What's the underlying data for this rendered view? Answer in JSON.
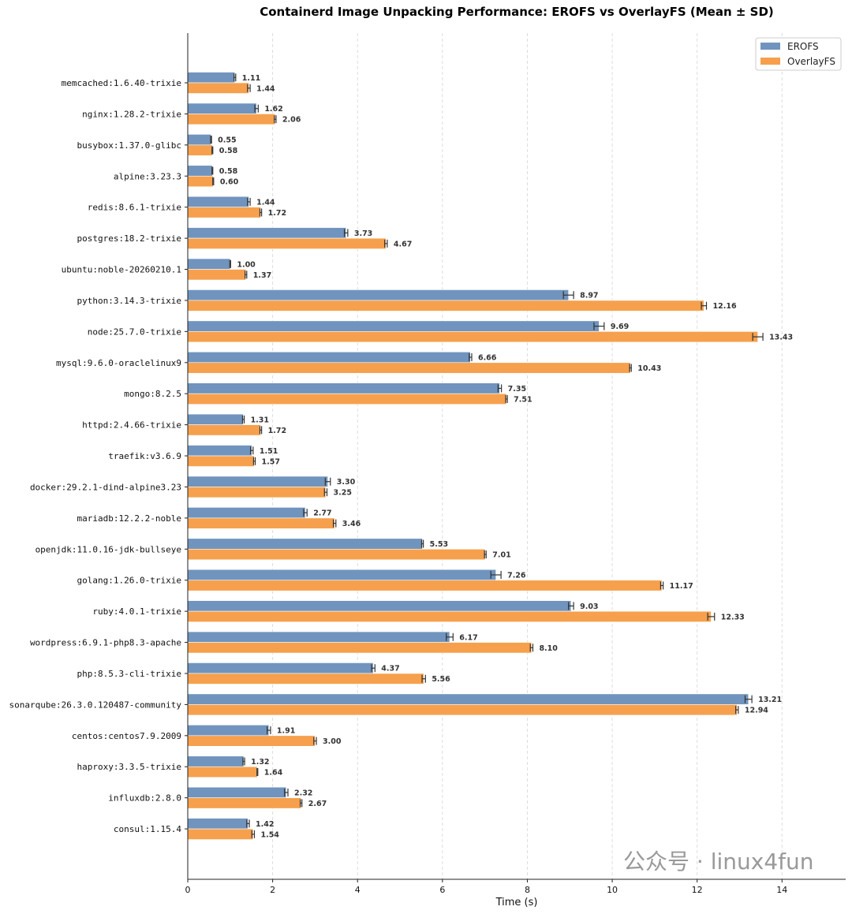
{
  "chart_data": {
    "type": "bar",
    "orientation": "horizontal",
    "title": "Containerd Image Unpacking Performance: EROFS vs OverlayFS (Mean ± SD)",
    "xlabel": "Time (s)",
    "ylabel": "",
    "xlim": [
      0,
      15.5
    ],
    "xticks": [
      0,
      2,
      4,
      6,
      8,
      10,
      12,
      14
    ],
    "grid": "x-dashed",
    "legend": "top-right",
    "categories": [
      "memcached:1.6.40-trixie",
      "nginx:1.28.2-trixie",
      "busybox:1.37.0-glibc",
      "alpine:3.23.3",
      "redis:8.6.1-trixie",
      "postgres:18.2-trixie",
      "ubuntu:noble-20260210.1",
      "python:3.14.3-trixie",
      "node:25.7.0-trixie",
      "mysql:9.6.0-oraclelinux9",
      "mongo:8.2.5",
      "httpd:2.4.66-trixie",
      "traefik:v3.6.9",
      "docker:29.2.1-dind-alpine3.23",
      "mariadb:12.2.2-noble",
      "openjdk:11.0.16-jdk-bullseye",
      "golang:1.26.0-trixie",
      "ruby:4.0.1-trixie",
      "wordpress:6.9.1-php8.3-apache",
      "php:8.5.3-cli-trixie",
      "sonarqube:26.3.0.120487-community",
      "centos:centos7.9.2009",
      "haproxy:3.3.5-trixie",
      "influxdb:2.8.0",
      "consul:1.15.4"
    ],
    "series": [
      {
        "name": "EROFS",
        "color": "#7094bd",
        "values": [
          1.11,
          1.62,
          0.55,
          0.58,
          1.44,
          3.73,
          1.0,
          8.97,
          9.69,
          6.66,
          7.35,
          1.31,
          1.51,
          3.3,
          2.77,
          5.53,
          7.26,
          9.03,
          6.17,
          4.37,
          13.21,
          1.91,
          1.32,
          2.32,
          1.42
        ],
        "sd": [
          0.02,
          0.04,
          0.01,
          0.01,
          0.03,
          0.04,
          0.01,
          0.12,
          0.12,
          0.03,
          0.04,
          0.02,
          0.03,
          0.06,
          0.04,
          0.02,
          0.12,
          0.06,
          0.08,
          0.04,
          0.08,
          0.04,
          0.02,
          0.04,
          0.03
        ]
      },
      {
        "name": "OverlayFS",
        "color": "#f6a04d",
        "values": [
          1.44,
          2.06,
          0.58,
          0.6,
          1.72,
          4.67,
          1.37,
          12.16,
          13.43,
          10.43,
          7.51,
          1.72,
          1.57,
          3.25,
          3.46,
          7.01,
          11.17,
          12.33,
          8.1,
          5.56,
          12.94,
          3.0,
          1.64,
          2.67,
          1.54
        ],
        "sd": [
          0.03,
          0.02,
          0.01,
          0.01,
          0.02,
          0.03,
          0.02,
          0.06,
          0.12,
          0.02,
          0.02,
          0.02,
          0.02,
          0.03,
          0.03,
          0.02,
          0.03,
          0.08,
          0.03,
          0.04,
          0.03,
          0.03,
          0.01,
          0.02,
          0.03
        ]
      }
    ]
  },
  "watermark": "公众号 · linux4fun"
}
